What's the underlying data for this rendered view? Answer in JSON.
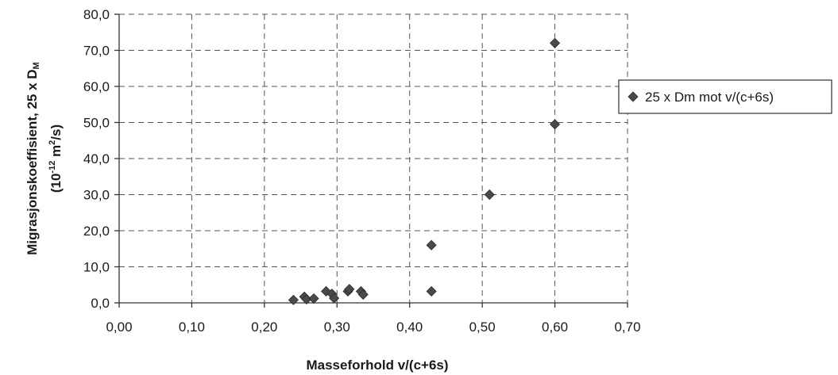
{
  "chart_data": {
    "type": "scatter",
    "xlabel": "Masseforhold v/(c+6s)",
    "ylabel_line1": "Migrasjonskoeffisient, 25 x D",
    "ylabel_line1_sub": "M",
    "ylabel_line2_a": "(10",
    "ylabel_line2_exp1": "-12",
    "ylabel_line2_b": " m",
    "ylabel_line2_exp2": "2",
    "ylabel_line2_c": "/s)",
    "xlim": [
      0,
      0.7
    ],
    "ylim": [
      0,
      80
    ],
    "x_ticks": [
      0,
      0.1,
      0.2,
      0.3,
      0.4,
      0.5,
      0.6,
      0.7
    ],
    "y_ticks": [
      0,
      10,
      20,
      30,
      40,
      50,
      60,
      70,
      80
    ],
    "x_tick_labels": [
      "0,00",
      "0,10",
      "0,20",
      "0,30",
      "0,40",
      "0,50",
      "0,60",
      "0,70"
    ],
    "y_tick_labels": [
      "0,0",
      "10,0",
      "20,0",
      "30,0",
      "40,0",
      "50,0",
      "60,0",
      "70,0",
      "80,0"
    ],
    "grid": "dashed",
    "legend_position": "right",
    "series": [
      {
        "name": "25 x Dm mot v/(c+6s)",
        "marker": "diamond",
        "color": "#4a4a4a",
        "points": [
          {
            "x": 0.24,
            "y": 0.8
          },
          {
            "x": 0.255,
            "y": 1.7
          },
          {
            "x": 0.258,
            "y": 1.0
          },
          {
            "x": 0.268,
            "y": 1.2
          },
          {
            "x": 0.285,
            "y": 3.2
          },
          {
            "x": 0.293,
            "y": 2.5
          },
          {
            "x": 0.296,
            "y": 1.3
          },
          {
            "x": 0.315,
            "y": 3.2
          },
          {
            "x": 0.317,
            "y": 3.8
          },
          {
            "x": 0.333,
            "y": 3.2
          },
          {
            "x": 0.336,
            "y": 2.3
          },
          {
            "x": 0.43,
            "y": 16.0
          },
          {
            "x": 0.43,
            "y": 3.2
          },
          {
            "x": 0.51,
            "y": 30.0
          },
          {
            "x": 0.6,
            "y": 49.5
          },
          {
            "x": 0.6,
            "y": 72.0
          }
        ]
      }
    ]
  }
}
